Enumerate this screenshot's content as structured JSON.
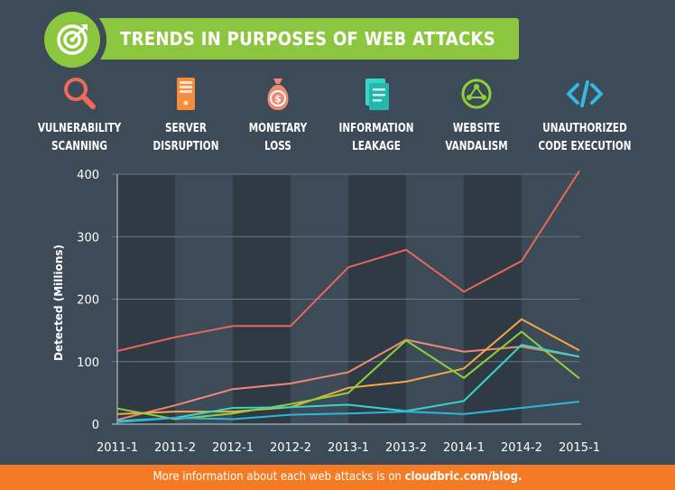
{
  "header": {
    "title": "TRENDS IN PURPOSES OF WEB ATTACKS"
  },
  "categories": [
    {
      "icon": "magnifier-icon",
      "label": "VULNERABILITY\nSCANNING",
      "color": "#ef6a5a"
    },
    {
      "icon": "server-icon",
      "label": "SERVER\nDISRUPTION",
      "color": "#f58c3e"
    },
    {
      "icon": "money-bag-icon",
      "label": "MONETARY\nLOSS",
      "color": "#ef8a72"
    },
    {
      "icon": "document-icon",
      "label": "INFORMATION\nLEAKAGE",
      "color": "#35d6c8"
    },
    {
      "icon": "globe-icon",
      "label": "WEBSITE\nVANDALISM",
      "color": "#8ed23a"
    },
    {
      "icon": "code-icon",
      "label": "UNAUTHORIZED\nCODE EXECUTION",
      "color": "#35b7e0"
    }
  ],
  "chart_data": {
    "type": "line",
    "title": "",
    "xlabel": "",
    "ylabel": "Detected (Millions)",
    "ylim": [
      0,
      400
    ],
    "yticks": [
      0,
      100,
      200,
      300,
      400
    ],
    "categories": [
      "2011-1",
      "2011-2",
      "2012-1",
      "2012-2",
      "2013-1",
      "2013-2",
      "2014-1",
      "2014-2",
      "2015-1"
    ],
    "series": [
      {
        "name": "Vulnerability Scanning",
        "color": "#e8685a",
        "values": [
          117,
          139,
          157,
          157,
          251,
          279,
          212,
          261,
          405
        ]
      },
      {
        "name": "Monetary Loss",
        "color": "#ef8a72",
        "values": [
          7,
          30,
          56,
          65,
          83,
          135,
          116,
          124,
          108
        ]
      },
      {
        "name": "Server Disruption",
        "color": "#f2a848",
        "values": [
          16,
          20,
          20,
          27,
          58,
          68,
          89,
          168,
          118
        ]
      },
      {
        "name": "Website Vandalism",
        "color": "#8ed23a",
        "values": [
          25,
          8,
          17,
          32,
          50,
          134,
          74,
          148,
          73
        ]
      },
      {
        "name": "Information Leakage",
        "color": "#35d6c8",
        "values": [
          5,
          10,
          26,
          27,
          31,
          21,
          37,
          127,
          108
        ]
      },
      {
        "name": "Unauthorized Code Execution",
        "color": "#2fb6de",
        "values": [
          3,
          10,
          8,
          15,
          17,
          20,
          16,
          26,
          36
        ]
      }
    ]
  },
  "footer": {
    "text": "More information about each web attacks is on ",
    "link": "cloudbric.com/blog."
  }
}
